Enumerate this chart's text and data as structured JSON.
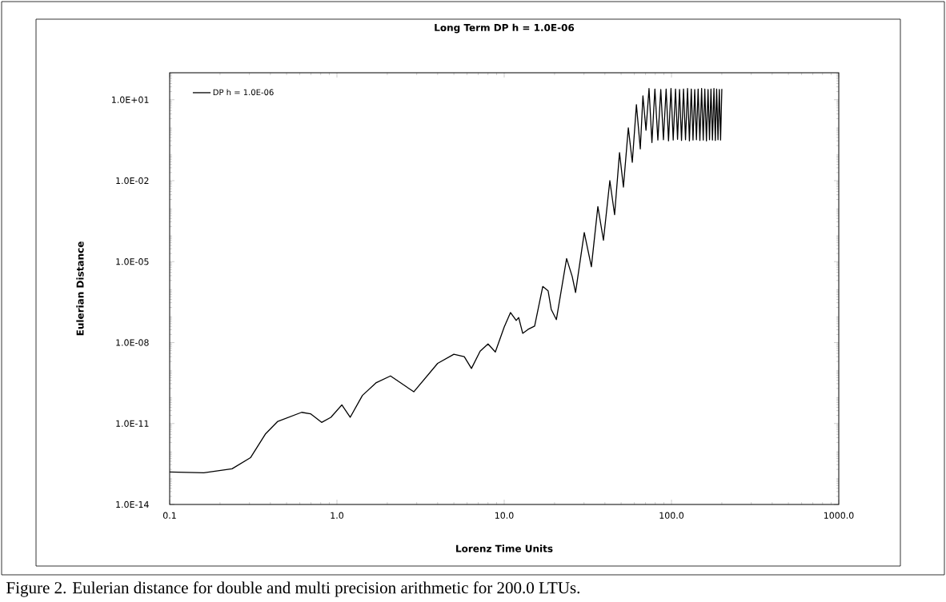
{
  "chart_data": {
    "type": "line",
    "title": "Long Term DP h = 1.0E-06",
    "xlabel": "Lorenz Time Units",
    "ylabel": "Eulerian Distance",
    "annotations": [
      "Figure 2. Eulerian distance for double and multi precision arithmetic for 200.0 LTUs."
    ],
    "log": "xy",
    "legend": "top left",
    "marker": "none",
    "line_style": "solid",
    "xlim": [
      0.1,
      1000
    ],
    "ylim": [
      1e-14,
      100
    ],
    "xticks": [
      {
        "value": 0.1,
        "label": "0.1"
      },
      {
        "value": 1,
        "label": "1.0"
      },
      {
        "value": 10,
        "label": "10.0"
      },
      {
        "value": 100,
        "label": "100.0"
      },
      {
        "value": 1000,
        "label": "1000.0"
      }
    ],
    "yticks": [
      {
        "value": 1e-14,
        "label": "1.0E-14"
      },
      {
        "value": 1e-11,
        "label": "1.0E-11"
      },
      {
        "value": 1e-08,
        "label": "1.0E-08"
      },
      {
        "value": 1e-05,
        "label": "1.0E-05"
      },
      {
        "value": 0.01,
        "label": "1.0E-02"
      },
      {
        "value": 10,
        "label": "1.0E+01"
      }
    ],
    "x": [
      0.1,
      0.16,
      0.236,
      0.304,
      0.375,
      0.443,
      0.615,
      0.695,
      0.81,
      0.92,
      1.07,
      1.2,
      1.42,
      1.71,
      2.09,
      2.88,
      4.0,
      5.0,
      5.77,
      6.37,
      7.18,
      8.0,
      8.85,
      10,
      10.9,
      11.8,
      12.2,
      12.9,
      13.9,
      15.2,
      17.0,
      18.3,
      19.1,
      20.5,
      23.6,
      25.5,
      26.7,
      30.1,
      33.2,
      36.3,
      39.2,
      42.8,
      45.7,
      48.9,
      51.6,
      55.2,
      58.3,
      61.7,
      65.1,
      67.5,
      70.4,
      73.4,
      76.4,
      79.6,
      82.9,
      86.3,
      89.5,
      92.9,
      96.0,
      99.3,
      102.4,
      105.7,
      108.7,
      111.7,
      114.8,
      118.0,
      121.3,
      124.7,
      128.0,
      131.3,
      134.5,
      137.7,
      141.0,
      144.3,
      147.8,
      151.4,
      154.8,
      158.2,
      161.8,
      165.4,
      168.8,
      172.2,
      175.8,
      179.4,
      182.8,
      186.2,
      189.7,
      193.2,
      196.6,
      200
    ],
    "series": [
      {
        "name": "DP h = 1.0E-06",
        "color": "#000000",
        "values": [
          1.6e-13,
          1.5e-13,
          2.1e-13,
          5.4e-13,
          4.2e-12,
          1.2e-11,
          2.6e-11,
          2.3e-11,
          1.1e-11,
          1.7e-11,
          4.9e-11,
          1.7e-11,
          1.1e-10,
          3.2e-10,
          5.8e-10,
          1.5e-10,
          1.7e-09,
          3.7e-09,
          3e-09,
          1.1e-09,
          4.8e-09,
          8.9e-09,
          4.5e-09,
          3.8e-08,
          1.3e-07,
          6.6e-08,
          8.5e-08,
          2.2e-08,
          3.1e-08,
          4.1e-08,
          1.2e-06,
          8.3e-07,
          1.7e-07,
          7.1e-08,
          1.3e-05,
          2.8e-06,
          7.2e-07,
          0.00012,
          6.5e-06,
          0.0011,
          6.2e-05,
          0.01,
          0.00055,
          0.11,
          0.0058,
          0.91,
          0.048,
          6.6,
          0.15,
          14,
          0.74,
          26,
          0.26,
          25,
          0.32,
          24,
          0.33,
          25,
          0.3,
          26,
          0.32,
          25,
          0.34,
          24,
          0.31,
          25,
          0.33,
          26,
          0.3,
          25,
          0.32,
          24,
          0.33,
          25,
          0.31,
          26,
          0.32,
          25,
          0.3,
          24,
          0.33,
          25,
          0.32,
          26,
          0.31,
          25,
          0.33,
          24,
          0.32,
          25
        ]
      }
    ]
  }
}
